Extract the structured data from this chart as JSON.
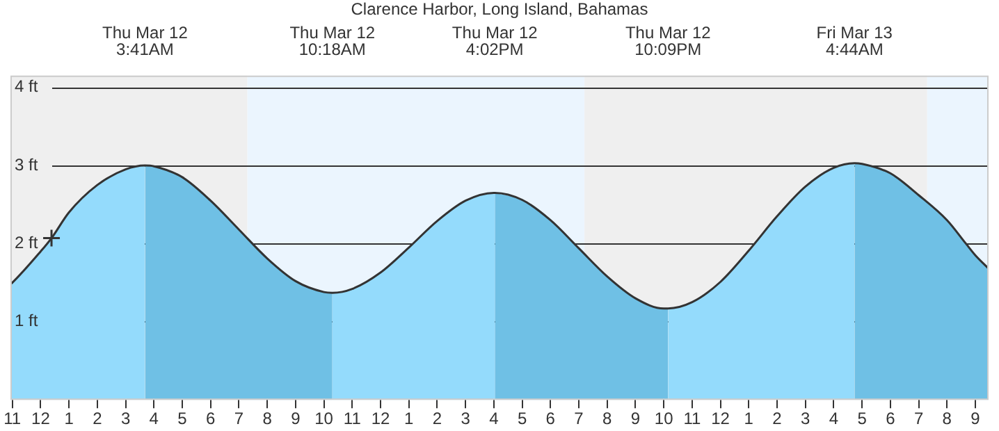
{
  "chart_data": {
    "type": "area",
    "title": "Clarence Harbor, Long Island, Bahamas",
    "xlim": [
      "--03-11T22:56",
      "--03-13T09:28"
    ],
    "ylim": [
      0,
      4.15
    ],
    "xticks": [
      {
        "value": "--03-11T23:00",
        "label": "11"
      },
      {
        "value": "--03-12T00:00",
        "label": "12"
      },
      {
        "value": "--03-12T01:00",
        "label": "1"
      },
      {
        "value": "--03-12T02:00",
        "label": "2"
      },
      {
        "value": "--03-12T03:00",
        "label": "3"
      },
      {
        "value": "--03-12T04:00",
        "label": "4"
      },
      {
        "value": "--03-12T05:00",
        "label": "5"
      },
      {
        "value": "--03-12T06:00",
        "label": "6"
      },
      {
        "value": "--03-12T07:00",
        "label": "7"
      },
      {
        "value": "--03-12T08:00",
        "label": "8"
      },
      {
        "value": "--03-12T09:00",
        "label": "9"
      },
      {
        "value": "--03-12T10:00",
        "label": "10"
      },
      {
        "value": "--03-12T11:00",
        "label": "11"
      },
      {
        "value": "--03-12T12:00",
        "label": "12"
      },
      {
        "value": "--03-12T13:00",
        "label": "1"
      },
      {
        "value": "--03-12T14:00",
        "label": "2"
      },
      {
        "value": "--03-12T15:00",
        "label": "3"
      },
      {
        "value": "--03-12T16:00",
        "label": "4"
      },
      {
        "value": "--03-12T17:00",
        "label": "5"
      },
      {
        "value": "--03-12T18:00",
        "label": "6"
      },
      {
        "value": "--03-12T19:00",
        "label": "7"
      },
      {
        "value": "--03-12T20:00",
        "label": "8"
      },
      {
        "value": "--03-12T21:00",
        "label": "9"
      },
      {
        "value": "--03-12T22:00",
        "label": "10"
      },
      {
        "value": "--03-12T23:00",
        "label": "11"
      },
      {
        "value": "--03-13T00:00",
        "label": "12"
      },
      {
        "value": "--03-13T01:00",
        "label": "1"
      },
      {
        "value": "--03-13T02:00",
        "label": "2"
      },
      {
        "value": "--03-13T03:00",
        "label": "3"
      },
      {
        "value": "--03-13T04:00",
        "label": "4"
      },
      {
        "value": "--03-13T05:00",
        "label": "5"
      },
      {
        "value": "--03-13T06:00",
        "label": "6"
      },
      {
        "value": "--03-13T07:00",
        "label": "7"
      },
      {
        "value": "--03-13T08:00",
        "label": "8"
      },
      {
        "value": "--03-13T09:00",
        "label": "9"
      }
    ],
    "x2lim": [
      "--03-11T22:56",
      "--03-13T09:28"
    ],
    "x2ticks": [
      {
        "value": "--03-12T03:41",
        "label": "Thu Mar 12\n3:41AM"
      },
      {
        "value": "--03-12T10:18",
        "label": "Thu Mar 12\n10:18AM"
      },
      {
        "value": "--03-12T16:02",
        "label": "Thu Mar 12\n4:02PM"
      },
      {
        "value": "--03-12T22:09",
        "label": "Thu Mar 12\n10:09PM"
      },
      {
        "value": "--03-13T04:44",
        "label": "Fri Mar 13\n4:44AM"
      }
    ],
    "yticks": [
      {
        "value": 1,
        "label": "1 ft"
      },
      {
        "value": 2,
        "label": "2 ft"
      },
      {
        "value": 3,
        "label": "3 ft"
      },
      {
        "value": 4,
        "label": "4 ft"
      }
    ],
    "grid": "y",
    "legend": false,
    "bands": [
      {
        "axis": "x",
        "from": "--03-11T22:56",
        "to": "--03-12T07:18",
        "color": "#efefef"
      },
      {
        "axis": "x",
        "from": "--03-12T07:18",
        "to": "--03-12T19:12",
        "color": "#ebf5fe"
      },
      {
        "axis": "x",
        "from": "--03-12T19:12",
        "to": "--03-13T07:18",
        "color": "#efefef"
      },
      {
        "axis": "x",
        "from": "--03-13T07:18",
        "to": "--03-13T09:28",
        "color": "#ebf5fe"
      }
    ],
    "series": [
      {
        "color": "#94dbfc",
        "x": [
          "--03-11T22:56",
          "--03-11T23:00",
          "--03-12T00:00",
          "--03-12T00:23",
          "--03-12T01:00",
          "--03-12T02:00",
          "--03-12T03:00",
          "--03-12T03:41"
        ],
        "values": [
          1.48,
          1.5,
          1.9,
          2.07,
          2.4,
          2.75,
          2.95,
          3.0
        ]
      },
      {
        "color": "#6fc0e5",
        "x": [
          "--03-12T03:41",
          "--03-12T04:00",
          "--03-12T05:00",
          "--03-12T06:00",
          "--03-12T07:00",
          "--03-12T08:00",
          "--03-12T09:00",
          "--03-12T10:00",
          "--03-12T10:18"
        ],
        "values": [
          3.0,
          2.99,
          2.85,
          2.55,
          2.18,
          1.81,
          1.52,
          1.38,
          1.37
        ]
      },
      {
        "color": "#94dbfc",
        "x": [
          "--03-12T10:18",
          "--03-12T11:00",
          "--03-12T12:00",
          "--03-12T13:00",
          "--03-12T14:00",
          "--03-12T15:00",
          "--03-12T16:00",
          "--03-12T16:02"
        ],
        "values": [
          1.37,
          1.42,
          1.63,
          1.95,
          2.29,
          2.55,
          2.65,
          2.65
        ]
      },
      {
        "color": "#6fc0e5",
        "x": [
          "--03-12T16:02",
          "--03-12T17:00",
          "--03-12T18:00",
          "--03-12T19:00",
          "--03-12T20:00",
          "--03-12T21:00",
          "--03-12T22:00",
          "--03-12T22:09"
        ],
        "values": [
          2.65,
          2.56,
          2.3,
          1.94,
          1.58,
          1.3,
          1.17,
          1.17
        ]
      },
      {
        "color": "#94dbfc",
        "x": [
          "--03-12T22:09",
          "--03-12T23:00",
          "--03-13T00:00",
          "--03-13T01:00",
          "--03-13T02:00",
          "--03-13T03:00",
          "--03-13T04:00",
          "--03-13T04:44"
        ],
        "values": [
          1.17,
          1.25,
          1.51,
          1.91,
          2.35,
          2.73,
          2.97,
          3.03
        ]
      },
      {
        "color": "#6fc0e5",
        "x": [
          "--03-13T04:44",
          "--03-13T05:00",
          "--03-13T06:00",
          "--03-13T07:00",
          "--03-13T08:00",
          "--03-13T08:40",
          "--03-13T09:00",
          "--03-13T09:28"
        ],
        "values": [
          3.03,
          3.02,
          2.9,
          2.62,
          2.3,
          2.0,
          1.85,
          1.68
        ]
      },
      {
        "type": "line",
        "color": "#333333",
        "x": [
          "--03-11T22:56",
          "--03-11T23:00",
          "--03-12T00:00",
          "--03-12T00:23",
          "--03-12T01:00",
          "--03-12T02:00",
          "--03-12T03:00",
          "--03-12T03:41",
          "--03-12T04:00",
          "--03-12T05:00",
          "--03-12T06:00",
          "--03-12T07:00",
          "--03-12T08:00",
          "--03-12T09:00",
          "--03-12T10:00",
          "--03-12T10:18",
          "--03-12T11:00",
          "--03-12T12:00",
          "--03-12T13:00",
          "--03-12T14:00",
          "--03-12T15:00",
          "--03-12T16:00",
          "--03-12T16:02",
          "--03-12T17:00",
          "--03-12T18:00",
          "--03-12T19:00",
          "--03-12T20:00",
          "--03-12T21:00",
          "--03-12T22:00",
          "--03-12T22:09",
          "--03-12T23:00",
          "--03-13T00:00",
          "--03-13T01:00",
          "--03-13T02:00",
          "--03-13T03:00",
          "--03-13T04:00",
          "--03-13T04:44",
          "--03-13T05:00",
          "--03-13T06:00",
          "--03-13T07:00",
          "--03-13T08:00",
          "--03-13T08:40",
          "--03-13T09:00",
          "--03-13T09:28"
        ],
        "values": [
          1.48,
          1.5,
          1.9,
          2.07,
          2.4,
          2.75,
          2.95,
          3.0,
          2.99,
          2.85,
          2.55,
          2.18,
          1.81,
          1.52,
          1.38,
          1.37,
          1.42,
          1.63,
          1.95,
          2.29,
          2.55,
          2.65,
          2.65,
          2.56,
          2.3,
          1.94,
          1.58,
          1.3,
          1.17,
          1.17,
          1.25,
          1.51,
          1.91,
          2.35,
          2.73,
          2.97,
          3.03,
          3.02,
          2.9,
          2.62,
          2.3,
          2.0,
          1.85,
          1.68
        ]
      },
      {
        "type": "scatter",
        "color": "#333333",
        "marker": "cross",
        "x": [
          "--03-12T00:23"
        ],
        "values": [
          2.07
        ]
      }
    ]
  }
}
